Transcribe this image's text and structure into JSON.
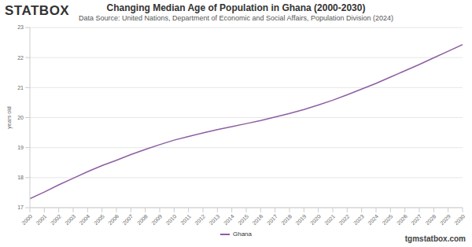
{
  "chart_data": {
    "type": "line",
    "title": "Changing Median Age of Population in Ghana (2000-2030)",
    "subtitle": "Data Source: United Nations, Department of Economic and Social Affairs, Population Division (2024)",
    "logo": "STATBOX",
    "footer": "tgmstatbox.com",
    "y_label": "years old",
    "x": [
      2000,
      2001,
      2002,
      2003,
      2004,
      2005,
      2006,
      2007,
      2008,
      2009,
      2010,
      2011,
      2012,
      2013,
      2014,
      2015,
      2016,
      2017,
      2018,
      2019,
      2020,
      2021,
      2022,
      2023,
      2024,
      2025,
      2026,
      2027,
      2028,
      2029,
      2030
    ],
    "series": [
      {
        "name": "Ghana",
        "color": "#8e5ea2",
        "values": [
          17.3,
          17.52,
          17.76,
          17.98,
          18.2,
          18.4,
          18.58,
          18.77,
          18.94,
          19.1,
          19.25,
          19.37,
          19.49,
          19.6,
          19.7,
          19.8,
          19.9,
          20.02,
          20.14,
          20.27,
          20.42,
          20.58,
          20.76,
          20.95,
          21.14,
          21.35,
          21.56,
          21.77,
          21.99,
          22.21,
          22.43
        ]
      }
    ],
    "xlim": [
      2000,
      2030
    ],
    "xticks": [
      2000,
      2001,
      2002,
      2003,
      2004,
      2005,
      2006,
      2007,
      2008,
      2009,
      2010,
      2011,
      2012,
      2013,
      2014,
      2015,
      2016,
      2017,
      2018,
      2019,
      2020,
      2021,
      2022,
      2023,
      2024,
      2025,
      2026,
      2027,
      2028,
      2029,
      2030
    ],
    "ylim": [
      17,
      23
    ],
    "yticks": [
      17,
      18,
      19,
      20,
      21,
      22,
      23
    ],
    "grid": true,
    "legend": "bottom"
  }
}
